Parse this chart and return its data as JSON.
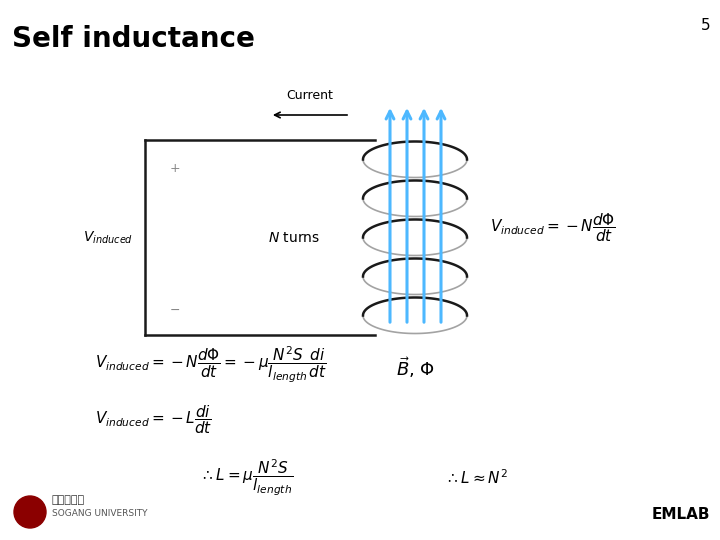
{
  "title": "Self inductance",
  "page_number": "5",
  "background_color": "#ffffff",
  "title_fontsize": 20,
  "title_color": "#000000",
  "emlab_text": "EMLAB",
  "current_label": "Current",
  "n_turns_label": "$N$ turns",
  "v_induced_label": "$V_{induced}$",
  "plus_label": "+",
  "minus_label": "−",
  "coil_color": "#1a1a1a",
  "arrow_color": "#4db8ff",
  "circuit_color": "#1a1a1a",
  "num_turns": 5,
  "sogang_line1": "서강대학교",
  "sogang_line2": "SOGANG UNIVERSITY"
}
